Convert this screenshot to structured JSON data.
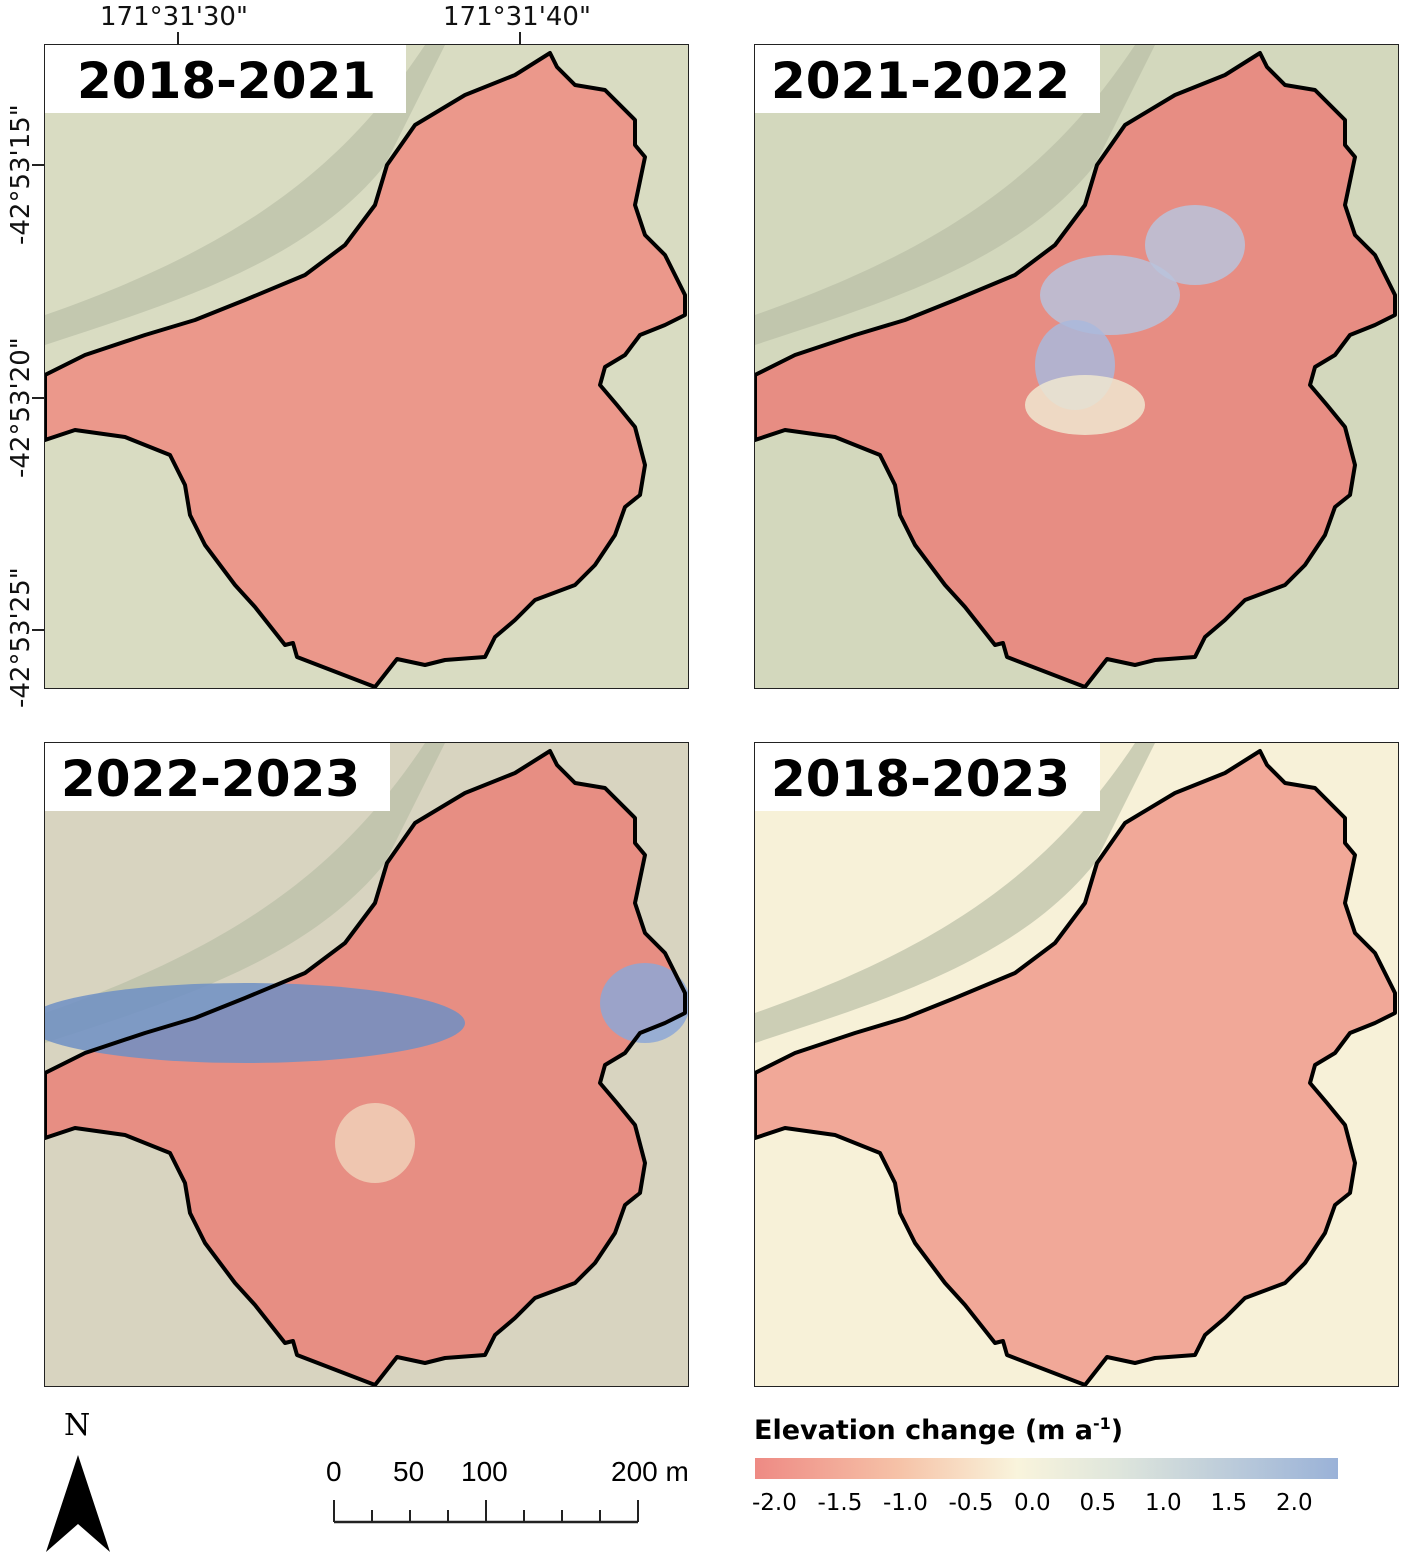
{
  "panels": [
    {
      "title": "2018-2021"
    },
    {
      "title": "2021-2022"
    },
    {
      "title": "2022-2023"
    },
    {
      "title": "2018-2023"
    }
  ],
  "axes": {
    "top_ticks": [
      "171°31'30\"",
      "171°31'40\""
    ],
    "left_ticks": [
      "-42°53'15\"",
      "-42°53'20\"",
      "-42°53'25\""
    ]
  },
  "north_arrow": {
    "label": "N"
  },
  "scale_bar": {
    "labels": [
      "0",
      "50",
      "100",
      "200 m"
    ],
    "unit": "m",
    "max": 200
  },
  "legend": {
    "title": "Elevation change (m a",
    "title_sup": "-1",
    "title_end": ")",
    "ticks": [
      "-2.0",
      "-1.5",
      "-1.0",
      "-0.5",
      "0.0",
      "0.5",
      "1.0",
      "1.5",
      "2.0"
    ],
    "range": [
      -2.25,
      2.25
    ],
    "colors": {
      "negative": "#ee8a84",
      "zero": "#f9f4dc",
      "positive": "#9ab2d8"
    }
  },
  "colors": {
    "glacier_outline": "#000000",
    "terrain": "#d6dcc0"
  }
}
